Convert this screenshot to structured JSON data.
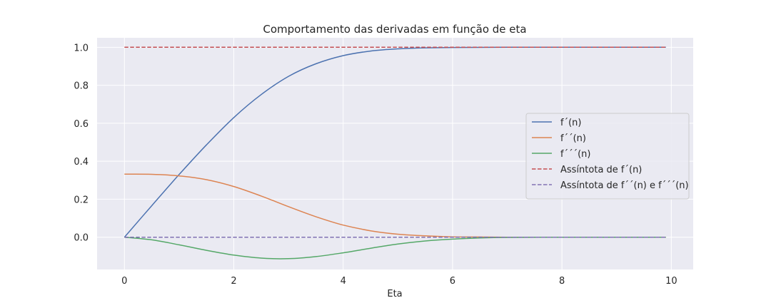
{
  "chart_data": {
    "type": "line",
    "title": "Comportamento das derivadas em função de eta",
    "xlabel": "Eta",
    "ylabel": "",
    "xlim": [
      -0.5,
      10.4
    ],
    "ylim": [
      -0.17,
      1.05
    ],
    "xticks": [
      0,
      2,
      4,
      6,
      8,
      10
    ],
    "xtick_labels": [
      "0",
      "2",
      "4",
      "6",
      "8",
      "10"
    ],
    "yticks": [
      0.0,
      0.2,
      0.4,
      0.6,
      0.8,
      1.0
    ],
    "ytick_labels": [
      "0.0",
      "0.2",
      "0.4",
      "0.6",
      "0.8",
      "1.0"
    ],
    "grid": true,
    "legend_position": "center-right",
    "background": "#eaeaf2",
    "series": [
      {
        "name": "f´(n)",
        "color": "#4c72b0",
        "dash": "solid",
        "x": [
          0,
          0.5,
          1,
          1.5,
          2,
          2.5,
          3,
          3.5,
          4,
          4.5,
          5,
          5.5,
          6,
          7,
          8,
          9,
          9.9
        ],
        "y": [
          0,
          0.166,
          0.33,
          0.486,
          0.63,
          0.751,
          0.847,
          0.913,
          0.956,
          0.98,
          0.992,
          0.997,
          0.999,
          1.0,
          1.0,
          1.0,
          1.0
        ]
      },
      {
        "name": "f´´(n)",
        "color": "#dd8452",
        "dash": "solid",
        "x": [
          0,
          0.5,
          1,
          1.5,
          2,
          2.5,
          3,
          3.5,
          4,
          4.5,
          5,
          5.5,
          6,
          6.5,
          7,
          8,
          9,
          9.9
        ],
        "y": [
          0.332,
          0.331,
          0.323,
          0.303,
          0.267,
          0.217,
          0.161,
          0.108,
          0.064,
          0.034,
          0.016,
          0.007,
          0.002,
          0.001,
          0,
          0,
          0,
          0
        ]
      },
      {
        "name": "f´´´(n)",
        "color": "#55a868",
        "dash": "solid",
        "x": [
          0,
          0.5,
          1,
          1.5,
          2,
          2.5,
          3,
          3.5,
          4,
          4.5,
          5,
          5.5,
          6,
          6.5,
          7,
          8,
          9,
          9.9
        ],
        "y": [
          0,
          -0.014,
          -0.04,
          -0.069,
          -0.094,
          -0.11,
          -0.113,
          -0.102,
          -0.082,
          -0.058,
          -0.036,
          -0.02,
          -0.01,
          -0.004,
          -0.001,
          0,
          0,
          0
        ]
      },
      {
        "name": "Assíntota de f´(n)",
        "color": "#c44e52",
        "dash": "dashed",
        "x": [
          0,
          9.9
        ],
        "y": [
          1.0,
          1.0
        ]
      },
      {
        "name": "Assíntota de f´´(n) e f´´´(n)",
        "color": "#8172b3",
        "dash": "dashed",
        "x": [
          0,
          9.9
        ],
        "y": [
          0.0,
          0.0
        ]
      }
    ]
  }
}
